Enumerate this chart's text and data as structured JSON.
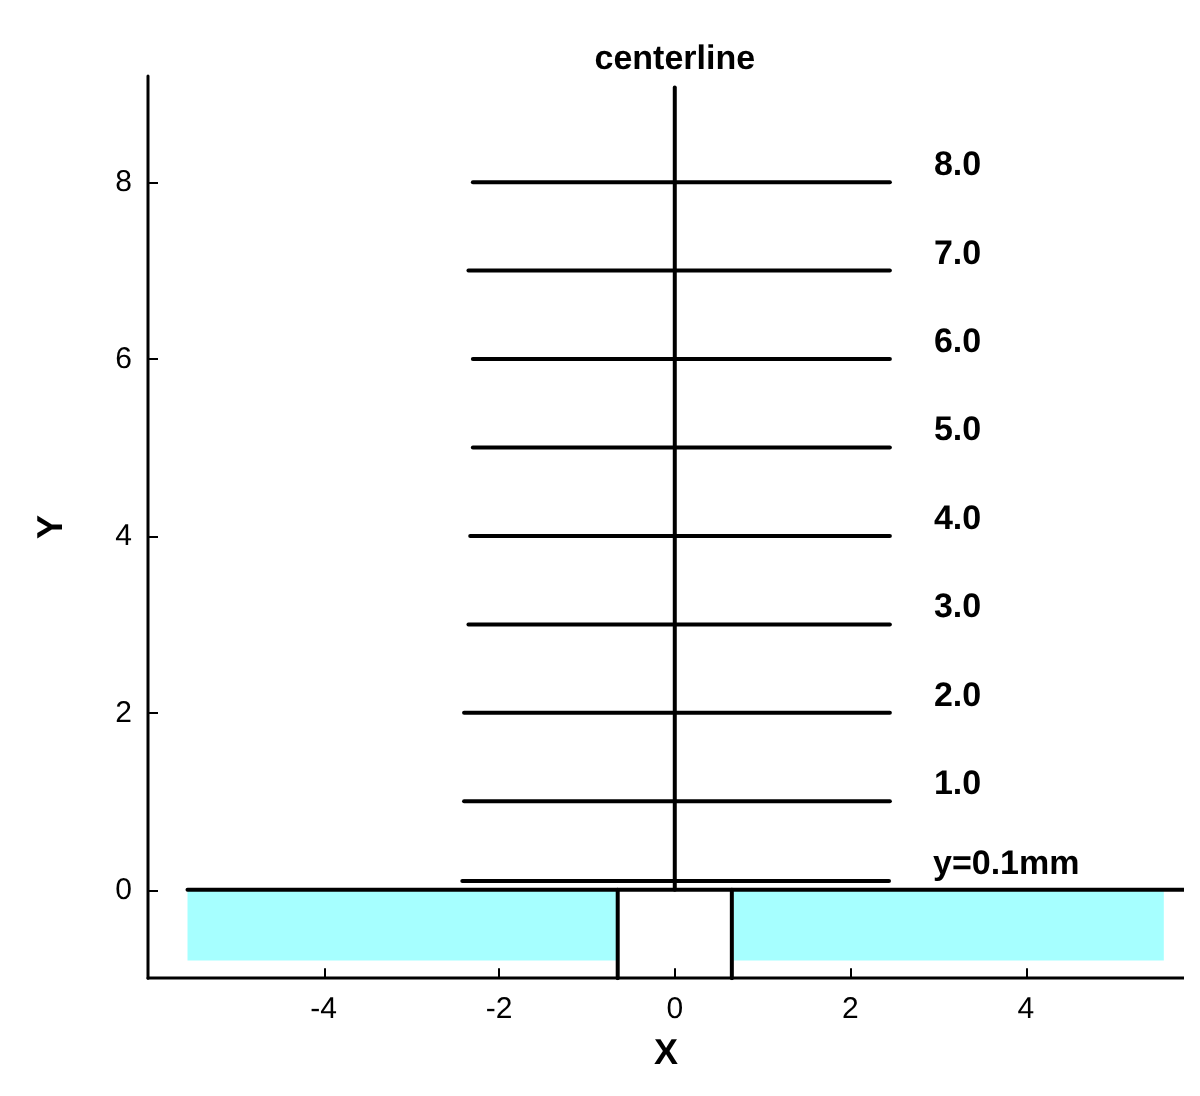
{
  "chart_data": {
    "type": "line",
    "xlabel": "X",
    "ylabel": "Y",
    "xlim": [
      -6,
      5.8
    ],
    "ylim": [
      -1,
      9.2
    ],
    "xticks": [
      -4,
      -2,
      0,
      2,
      4
    ],
    "yticks": [
      0,
      2,
      4,
      6,
      8
    ],
    "grid": false,
    "legend": false,
    "marker": "none",
    "line_style": "solid",
    "series": [
      {
        "type": "area",
        "color": "#a6ffff",
        "x": [
          -5.55,
          -0.67
        ],
        "values": [
          -0.8,
          -0.8
        ]
      },
      {
        "type": "area",
        "color": "#a6ffff",
        "x": [
          0.67,
          5.57
        ],
        "values": [
          -0.8,
          -0.8
        ]
      },
      {
        "color": "#000000",
        "x": [
          -5.55,
          5.8
        ],
        "values": [
          0,
          0
        ]
      },
      {
        "color": "#000000",
        "x": [
          -0.65,
          -0.65
        ],
        "values": [
          0,
          -1
        ]
      },
      {
        "color": "#000000",
        "x": [
          0.65,
          0.65
        ],
        "values": [
          0,
          -1
        ]
      },
      {
        "name": "centerline",
        "color": "#000000",
        "x": [
          0,
          0
        ],
        "values": [
          0,
          9.07
        ]
      },
      {
        "name": "8.0",
        "color": "#000000",
        "x": [
          -2.3,
          2.45
        ],
        "values": [
          8,
          8
        ]
      },
      {
        "name": "7.0",
        "color": "#000000",
        "x": [
          -2.35,
          2.45
        ],
        "values": [
          7,
          7
        ]
      },
      {
        "name": "6.0",
        "color": "#000000",
        "x": [
          -2.3,
          2.45
        ],
        "values": [
          6,
          6
        ]
      },
      {
        "name": "5.0",
        "color": "#000000",
        "x": [
          -2.3,
          2.45
        ],
        "values": [
          5,
          5
        ]
      },
      {
        "name": "4.0",
        "color": "#000000",
        "x": [
          -2.33,
          2.45
        ],
        "values": [
          4,
          4
        ]
      },
      {
        "name": "3.0",
        "color": "#000000",
        "x": [
          -2.35,
          2.45
        ],
        "values": [
          3,
          3
        ]
      },
      {
        "name": "2.0",
        "color": "#000000",
        "x": [
          -2.4,
          2.45
        ],
        "values": [
          2,
          2
        ]
      },
      {
        "name": "1.0",
        "color": "#000000",
        "x": [
          -2.4,
          2.45
        ],
        "values": [
          1,
          1
        ]
      },
      {
        "name": "y=0.1mm",
        "color": "#000000",
        "x": [
          -2.42,
          2.44
        ],
        "values": [
          0.1,
          0.1
        ]
      }
    ]
  }
}
